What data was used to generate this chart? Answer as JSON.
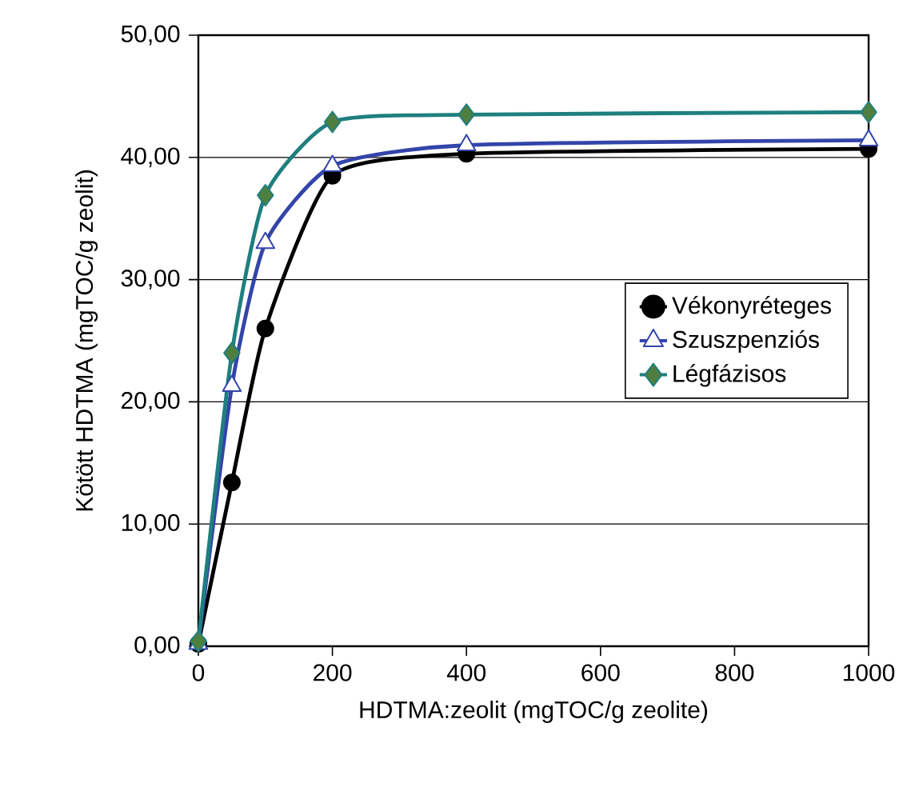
{
  "chart_data": {
    "type": "line",
    "xlabel": "HDTMA:zeolit  (mgTOC/g zeolite)",
    "ylabel": "Kötött HDTMA (mgTOC/g zeolit)",
    "xlim": [
      0,
      1000
    ],
    "xticks": [
      0,
      200,
      400,
      600,
      800,
      1000
    ],
    "ylim": [
      0,
      50
    ],
    "yticks": [
      {
        "value": 0,
        "label": "0,00"
      },
      {
        "value": 10,
        "label": "10,00"
      },
      {
        "value": 20,
        "label": "20,00"
      },
      {
        "value": 30,
        "label": "30,00"
      },
      {
        "value": 40,
        "label": "40,00"
      },
      {
        "value": 50,
        "label": "50,00"
      }
    ],
    "grid": "y",
    "legend": "right",
    "series": [
      {
        "name": "Vékonyréteges",
        "color": "#000000",
        "marker": "circle",
        "x": [
          0,
          50,
          100,
          200,
          400,
          1000
        ],
        "values": [
          0.2,
          13.4,
          26.0,
          38.5,
          40.3,
          40.7
        ]
      },
      {
        "name": "Szuszpenziós",
        "color": "#3344aa",
        "marker": "triangle",
        "x": [
          0,
          50,
          100,
          200,
          400,
          1000
        ],
        "values": [
          0.2,
          21.3,
          33.0,
          39.3,
          41.0,
          41.4
        ]
      },
      {
        "name": "Légfázisos",
        "color": "#1f7f7f",
        "marker": "diamond",
        "x": [
          0,
          50,
          100,
          200,
          400,
          1000
        ],
        "values": [
          0.4,
          24.0,
          36.9,
          42.9,
          43.5,
          43.7
        ]
      }
    ]
  }
}
